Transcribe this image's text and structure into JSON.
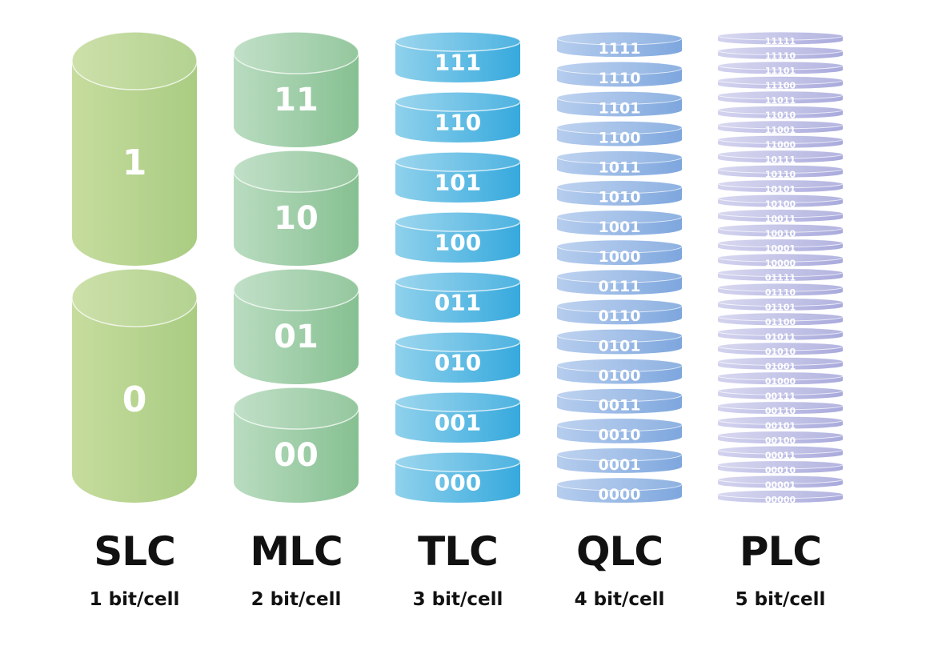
{
  "columns": [
    {
      "id": "slc",
      "name": "SLC",
      "bits": "1 bit/cell",
      "states": [
        "1",
        "0"
      ],
      "colors": [
        "#c6dc9e",
        "#a9cc82"
      ]
    },
    {
      "id": "mlc",
      "name": "MLC",
      "bits": "2 bit/cell",
      "states": [
        "11",
        "10",
        "01",
        "00"
      ],
      "colors": [
        "#b9dcc0",
        "#86c091"
      ]
    },
    {
      "id": "tlc",
      "name": "TLC",
      "bits": "3 bit/cell",
      "states": [
        "111",
        "110",
        "101",
        "100",
        "011",
        "010",
        "001",
        "000"
      ],
      "colors": [
        "#8fd1ec",
        "#36a9dd"
      ]
    },
    {
      "id": "qlc",
      "name": "QLC",
      "bits": "4 bit/cell",
      "states": [
        "1111",
        "1110",
        "1101",
        "1100",
        "1011",
        "1010",
        "1001",
        "1000",
        "0111",
        "0110",
        "0101",
        "0100",
        "0011",
        "0010",
        "0001",
        "0000"
      ],
      "colors": [
        "#b6cdee",
        "#7ea7de"
      ]
    },
    {
      "id": "plc",
      "name": "PLC",
      "bits": "5 bit/cell",
      "states": [
        "11111",
        "11110",
        "11101",
        "11100",
        "11011",
        "11010",
        "11001",
        "11000",
        "10111",
        "10110",
        "10101",
        "10100",
        "10011",
        "10010",
        "10001",
        "10000",
        "01111",
        "01110",
        "01101",
        "01100",
        "01011",
        "01010",
        "01001",
        "01000",
        "00111",
        "00110",
        "00101",
        "00100",
        "00011",
        "00010",
        "00001",
        "00000"
      ],
      "colors": [
        "#d3d3ef",
        "#a9aadc"
      ]
    }
  ]
}
